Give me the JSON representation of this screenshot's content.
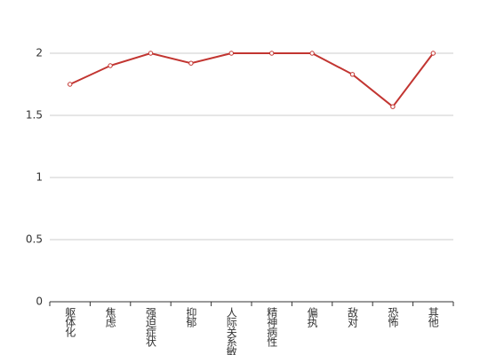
{
  "chart_data": {
    "type": "line",
    "categories": [
      "躯体化",
      "焦虑",
      "强迫症状",
      "抑郁",
      "人际关系敏感",
      "精神病性",
      "偏执",
      "敌对",
      "恐怖",
      "其他"
    ],
    "values": [
      1.75,
      1.9,
      2,
      1.92,
      2,
      2,
      2,
      1.83,
      1.57,
      2
    ],
    "color": "#c23531",
    "ylim": [
      0,
      2
    ],
    "yticks": [
      0,
      0.5,
      1,
      1.5,
      2
    ],
    "grid": true
  }
}
